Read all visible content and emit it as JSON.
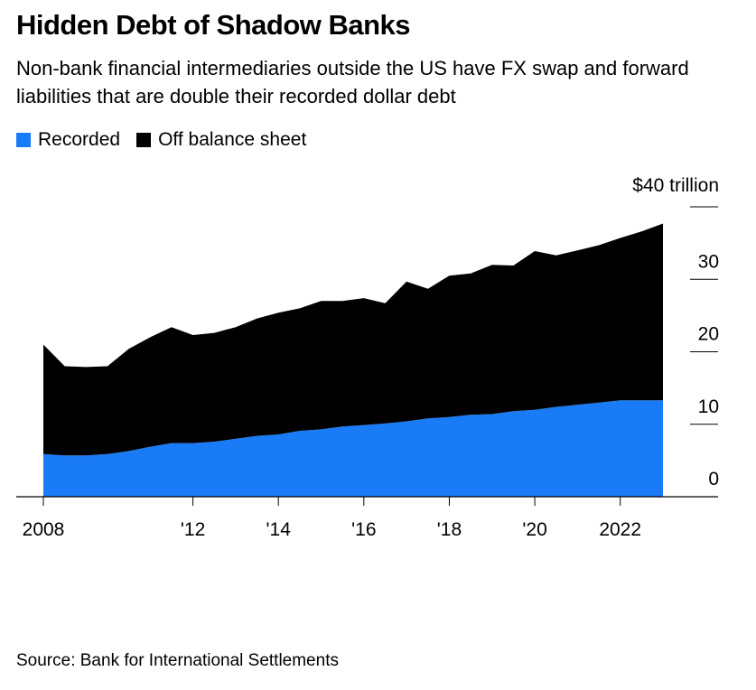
{
  "header": {
    "title": "Hidden Debt of Shadow Banks",
    "subtitle": "Non-bank financial intermediaries outside the US have FX swap and forward liabilities that are double their recorded dollar debt"
  },
  "legend": {
    "items": [
      {
        "label": "Recorded",
        "color": "#1a7bf6"
      },
      {
        "label": "Off balance sheet",
        "color": "#000000"
      }
    ]
  },
  "footer": {
    "source": "Source: Bank for International Settlements"
  },
  "chart_data": {
    "type": "area",
    "stacked": true,
    "x_tick_labels": [
      "2008",
      "'12",
      "'14",
      "'16",
      "'18",
      "'20",
      "2022"
    ],
    "x_tick_values": [
      2008,
      2011.5,
      2013.5,
      2015.5,
      2017.5,
      2019.5,
      2021.5
    ],
    "y_tick_labels": [
      "0",
      "10",
      "20",
      "30"
    ],
    "y_tick_values": [
      0,
      10,
      20,
      30
    ],
    "y_top_label_prefix": "$",
    "y_top_label_rest": "40 trillion",
    "ylim": [
      0,
      40
    ],
    "x": [
      2008.0,
      2008.5,
      2009.0,
      2009.5,
      2010.0,
      2010.5,
      2011.0,
      2011.5,
      2012.0,
      2012.5,
      2013.0,
      2013.5,
      2014.0,
      2014.5,
      2015.0,
      2015.5,
      2016.0,
      2016.5,
      2017.0,
      2017.5,
      2018.0,
      2018.5,
      2019.0,
      2019.5,
      2020.0,
      2020.5,
      2021.0,
      2021.5,
      2022.0,
      2022.5
    ],
    "series": [
      {
        "name": "Recorded",
        "color": "#1a7bf6",
        "values": [
          5.9,
          5.7,
          5.7,
          5.9,
          6.3,
          6.9,
          7.4,
          7.4,
          7.6,
          8.0,
          8.4,
          8.6,
          9.1,
          9.3,
          9.7,
          9.9,
          10.1,
          10.4,
          10.8,
          11.0,
          11.3,
          11.4,
          11.8,
          12.0,
          12.4,
          12.7,
          13.0,
          13.3,
          13.3,
          13.3
        ]
      },
      {
        "name": "Off balance sheet",
        "color": "#000000",
        "values": [
          15.1,
          12.3,
          12.2,
          12.1,
          14.1,
          15.1,
          16.0,
          14.9,
          15.0,
          15.4,
          16.2,
          16.8,
          16.9,
          17.7,
          17.3,
          17.5,
          16.6,
          19.3,
          17.9,
          19.5,
          19.5,
          20.6,
          20.1,
          21.9,
          20.9,
          21.3,
          21.7,
          22.4,
          23.3,
          24.4
        ]
      }
    ],
    "grid": false,
    "legend_position": "top-left"
  }
}
